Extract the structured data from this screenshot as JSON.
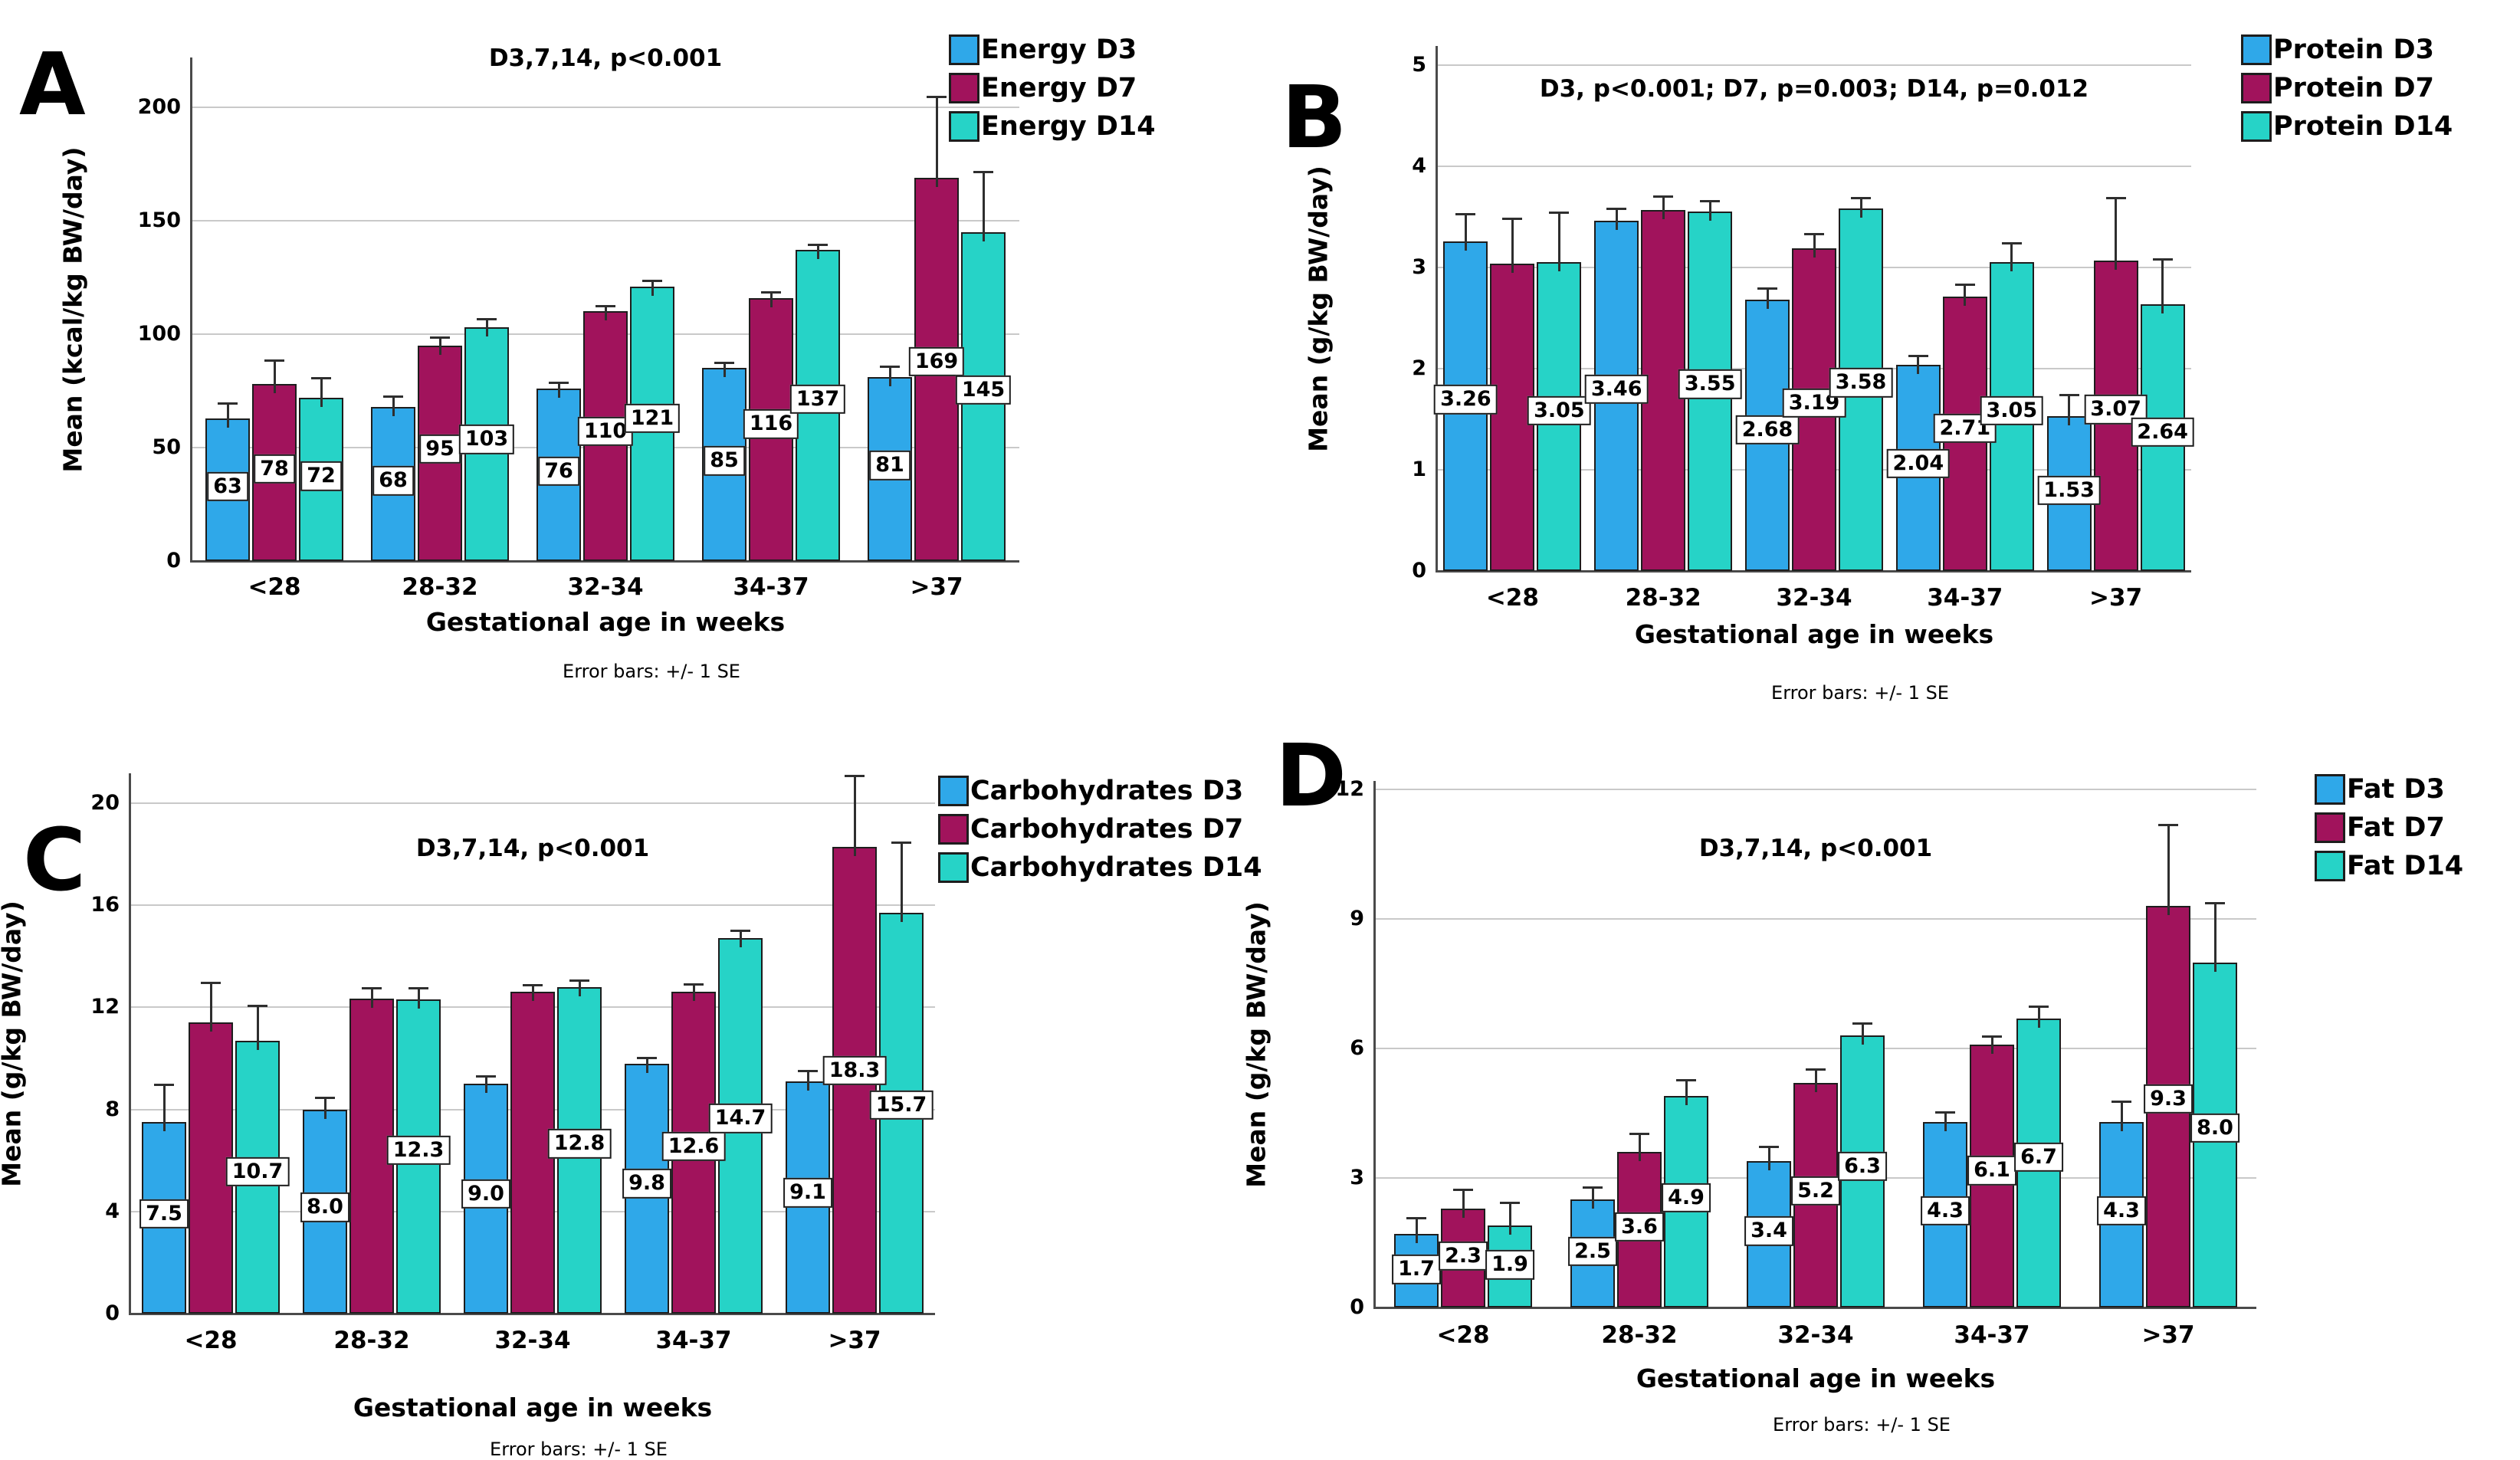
{
  "figure_caption": "Error bars: +/- 1 SE",
  "chart_data": [
    {
      "type": "bar",
      "panel_letter": "A",
      "title": "D3,7,14, p<0.001",
      "ylabel": "Mean (kcal/kg BW/day)",
      "xlabel": "Gestational age in weeks",
      "caption": "Error bars: +/- 1 SE",
      "categories": [
        "<28",
        "28-32",
        "32-34",
        "34-37",
        ">37"
      ],
      "yticks": [
        0,
        50,
        100,
        150,
        200
      ],
      "ylim": [
        0,
        222
      ],
      "grid": true,
      "legend_position": "top-right",
      "series": [
        {
          "name": "Energy D3",
          "color": "#2FA8E9",
          "values": [
            63,
            68,
            76,
            85,
            81
          ],
          "se": [
            7,
            5,
            3,
            3,
            5
          ],
          "labels": [
            "63",
            "68",
            "76",
            "85",
            "81"
          ]
        },
        {
          "name": "Energy D7",
          "color": "#A1135C",
          "values": [
            78,
            95,
            110,
            116,
            169
          ],
          "se": [
            11,
            4,
            3,
            3,
            36
          ],
          "labels": [
            "78",
            "95",
            "110",
            "116",
            "169"
          ]
        },
        {
          "name": "Energy D14",
          "color": "#26D3C7",
          "values": [
            72,
            103,
            121,
            137,
            145
          ],
          "se": [
            9,
            4,
            3,
            3,
            27
          ],
          "labels": [
            "72",
            "103",
            "121",
            "137",
            "145"
          ]
        }
      ]
    },
    {
      "type": "bar",
      "panel_letter": "B",
      "title": "D3, p<0.001; D7, p=0.003; D14, p=0.012",
      "ylabel": "Mean (g/kg BW/day)",
      "xlabel": "Gestational age in weeks",
      "caption": "Error bars: +/- 1 SE",
      "categories": [
        "<28",
        "28-32",
        "32-34",
        "34-37",
        ">37"
      ],
      "yticks": [
        0,
        1,
        2,
        3,
        4,
        5
      ],
      "ylim": [
        0,
        5.2
      ],
      "grid": true,
      "legend_position": "top-right",
      "series": [
        {
          "name": "Protein D3",
          "color": "#2FA8E9",
          "values": [
            3.26,
            3.46,
            2.68,
            2.04,
            1.53
          ],
          "se": [
            0.28,
            0.13,
            0.12,
            0.1,
            0.22
          ],
          "labels": [
            "3.26",
            "3.46",
            "2.68",
            "2.04",
            "1.53"
          ]
        },
        {
          "name": "Protein D7",
          "color": "#A1135C",
          "values": [
            3.04,
            3.57,
            3.19,
            2.71,
            3.07
          ],
          "se": [
            0.45,
            0.14,
            0.15,
            0.13,
            0.63
          ],
          "labels": [
            "",
            "",
            "3.19",
            "2.71",
            "3.07"
          ]
        },
        {
          "name": "Protein D14",
          "color": "#26D3C7",
          "values": [
            3.05,
            3.55,
            3.58,
            3.05,
            2.64
          ],
          "se": [
            0.5,
            0.12,
            0.12,
            0.2,
            0.45
          ],
          "labels": [
            "3.05",
            "3.55",
            "3.58",
            "3.05",
            "2.64"
          ]
        }
      ]
    },
    {
      "type": "bar",
      "panel_letter": "C",
      "title": "D3,7,14, p<0.001",
      "ylabel": "Mean (g/kg BW/day)",
      "xlabel": "Gestational age in weeks",
      "caption": "Error bars: +/- 1 SE",
      "categories": [
        "<28",
        "28-32",
        "32-34",
        "34-37",
        ">37"
      ],
      "yticks": [
        0,
        4,
        8,
        12,
        16,
        20
      ],
      "ylim": [
        0,
        21.3
      ],
      "grid": true,
      "legend_position": "top-right",
      "series": [
        {
          "name": "Carbohydrates D3",
          "color": "#2FA8E9",
          "values": [
            7.5,
            8.0,
            9.0,
            9.8,
            9.1
          ],
          "se": [
            1.5,
            0.5,
            0.35,
            0.25,
            0.45
          ],
          "labels": [
            "7.5",
            "8.0",
            "9.0",
            "9.8",
            "9.1"
          ]
        },
        {
          "name": "Carbohydrates D7",
          "color": "#A1135C",
          "values": [
            11.4,
            12.35,
            12.6,
            12.6,
            18.3
          ],
          "se": [
            1.6,
            0.45,
            0.3,
            0.35,
            2.8
          ],
          "labels": [
            "",
            "",
            "",
            "12.6",
            "18.3"
          ]
        },
        {
          "name": "Carbohydrates D14",
          "color": "#26D3C7",
          "values": [
            10.7,
            12.3,
            12.8,
            14.7,
            15.7
          ],
          "se": [
            1.4,
            0.5,
            0.3,
            0.35,
            2.8
          ],
          "labels": [
            "10.7",
            "12.3",
            "12.8",
            "14.7",
            "15.7"
          ]
        }
      ]
    },
    {
      "type": "bar",
      "panel_letter": "D",
      "title": "D3,7,14, p<0.001",
      "ylabel": "Mean (g/kg BW/day)",
      "xlabel": "Gestational age in weeks",
      "caption": "Error bars: +/- 1 SE",
      "categories": [
        "<28",
        "28-32",
        "32-34",
        "34-37",
        ">37"
      ],
      "yticks": [
        0,
        3,
        6,
        9,
        12
      ],
      "ylim": [
        0,
        12.2
      ],
      "grid": true,
      "legend_position": "top-right",
      "series": [
        {
          "name": "Fat D3",
          "color": "#2FA8E9",
          "values": [
            1.7,
            2.5,
            3.4,
            4.3,
            4.3
          ],
          "se": [
            0.4,
            0.3,
            0.35,
            0.25,
            0.5
          ],
          "labels": [
            "1.7",
            "2.5",
            "3.4",
            "4.3",
            "4.3"
          ]
        },
        {
          "name": "Fat D7",
          "color": "#A1135C",
          "values": [
            2.3,
            3.6,
            5.2,
            6.1,
            9.3
          ],
          "se": [
            0.45,
            0.45,
            0.35,
            0.2,
            1.9
          ],
          "labels": [
            "2.3",
            "3.6",
            "5.2",
            "6.1",
            "9.3"
          ]
        },
        {
          "name": "Fat D14",
          "color": "#26D3C7",
          "values": [
            1.9,
            4.9,
            6.3,
            6.7,
            8.0
          ],
          "se": [
            0.55,
            0.4,
            0.3,
            0.3,
            1.4
          ],
          "labels": [
            "1.9",
            "4.9",
            "6.3",
            "6.7",
            "8.0"
          ]
        }
      ]
    }
  ]
}
